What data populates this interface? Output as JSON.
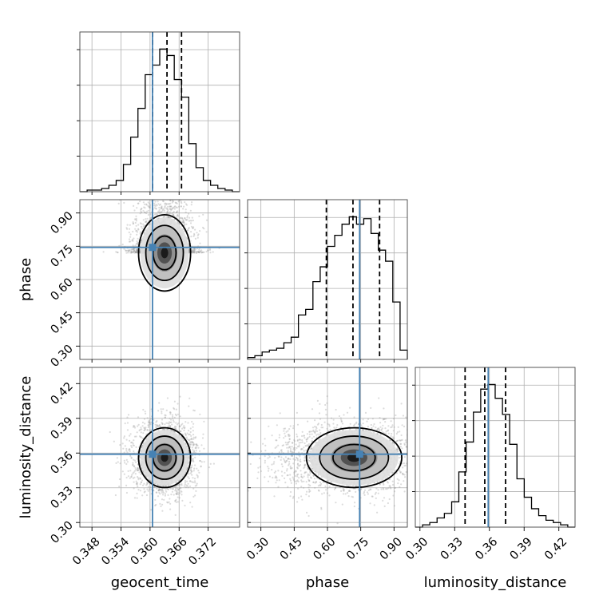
{
  "chart_data": {
    "type": "corner",
    "parameters": [
      "geocent_time",
      "phase",
      "luminosity_distance"
    ],
    "axes": [
      {
        "name": "geocent_time",
        "label": "geocent_time",
        "range": [
          0.3455,
          0.3785
        ],
        "ticks": [
          "0.348",
          "0.354",
          "0.360",
          "0.366",
          "0.372"
        ],
        "truth": 0.3605,
        "quantiles": [
          0.3605,
          0.3635,
          0.3665
        ]
      },
      {
        "name": "phase",
        "label": "phase",
        "range": [
          0.24,
          0.96
        ],
        "ticks": [
          "0.30",
          "0.45",
          "0.60",
          "0.75",
          "0.90"
        ],
        "truth": 0.745,
        "quantiles": [
          0.595,
          0.715,
          0.835
        ]
      },
      {
        "name": "luminosity_distance",
        "label": "luminosity_distance",
        "range": [
          0.296,
          0.434
        ],
        "ticks": [
          "0.30",
          "0.33",
          "0.36",
          "0.39",
          "0.42"
        ],
        "truth": 0.359,
        "quantiles": [
          0.339,
          0.356,
          0.374
        ]
      }
    ],
    "histograms": [
      {
        "param": "geocent_time",
        "bin_edges": [
          0.3455,
          0.347,
          0.3485,
          0.35,
          0.3515,
          0.353,
          0.3545,
          0.356,
          0.3575,
          0.359,
          0.3605,
          0.362,
          0.3635,
          0.365,
          0.3665,
          0.368,
          0.3695,
          0.371,
          0.3725,
          0.374,
          0.3755,
          0.377,
          0.3785
        ],
        "counts": [
          0,
          1,
          1,
          2,
          4,
          7,
          17,
          34,
          52,
          73,
          79,
          89,
          85,
          70,
          59,
          30,
          15,
          7,
          4,
          2,
          1,
          0
        ]
      },
      {
        "param": "phase",
        "bin_edges": [
          0.24,
          0.2727,
          0.3055,
          0.3382,
          0.3709,
          0.4036,
          0.4364,
          0.4691,
          0.5018,
          0.5345,
          0.5673,
          0.6,
          0.6327,
          0.6655,
          0.6982,
          0.7309,
          0.7636,
          0.7964,
          0.8291,
          0.8618,
          0.8945,
          0.9273,
          0.96
        ],
        "counts": [
          1,
          2,
          4,
          5,
          6,
          9,
          12,
          24,
          27,
          42,
          50,
          61,
          67,
          73,
          77,
          73,
          76,
          68,
          59,
          53,
          31,
          5
        ]
      },
      {
        "param": "luminosity_distance",
        "bin_edges": [
          0.296,
          0.3023,
          0.3085,
          0.3148,
          0.3211,
          0.3274,
          0.3336,
          0.3399,
          0.3462,
          0.3525,
          0.3587,
          0.365,
          0.3713,
          0.3775,
          0.3838,
          0.3901,
          0.3964,
          0.4026,
          0.4089,
          0.4152,
          0.4215,
          0.4277,
          0.434
        ],
        "counts": [
          0,
          1,
          2,
          4,
          6,
          11,
          24,
          37,
          50,
          60,
          62,
          56,
          49,
          36,
          21,
          13,
          8,
          5,
          3,
          2,
          1,
          0
        ]
      }
    ],
    "density_peaks": [
      {
        "x_param": "geocent_time",
        "y_param": "phase",
        "center": [
          0.363,
          0.72
        ],
        "spread": [
          0.0025,
          0.08
        ],
        "n_points": 2500
      },
      {
        "x_param": "geocent_time",
        "y_param": "luminosity_distance",
        "center": [
          0.363,
          0.356
        ],
        "spread": [
          0.0025,
          0.012
        ],
        "n_points": 2500
      },
      {
        "x_param": "phase",
        "y_param": "luminosity_distance",
        "center": [
          0.72,
          0.356
        ],
        "spread": [
          0.1,
          0.012
        ],
        "n_points": 2500
      }
    ],
    "colors": {
      "truth": "#4682b4",
      "lines": "#000000",
      "grid": "#b0b0b0",
      "scatter": "#9a9a9a"
    },
    "grid": true
  }
}
